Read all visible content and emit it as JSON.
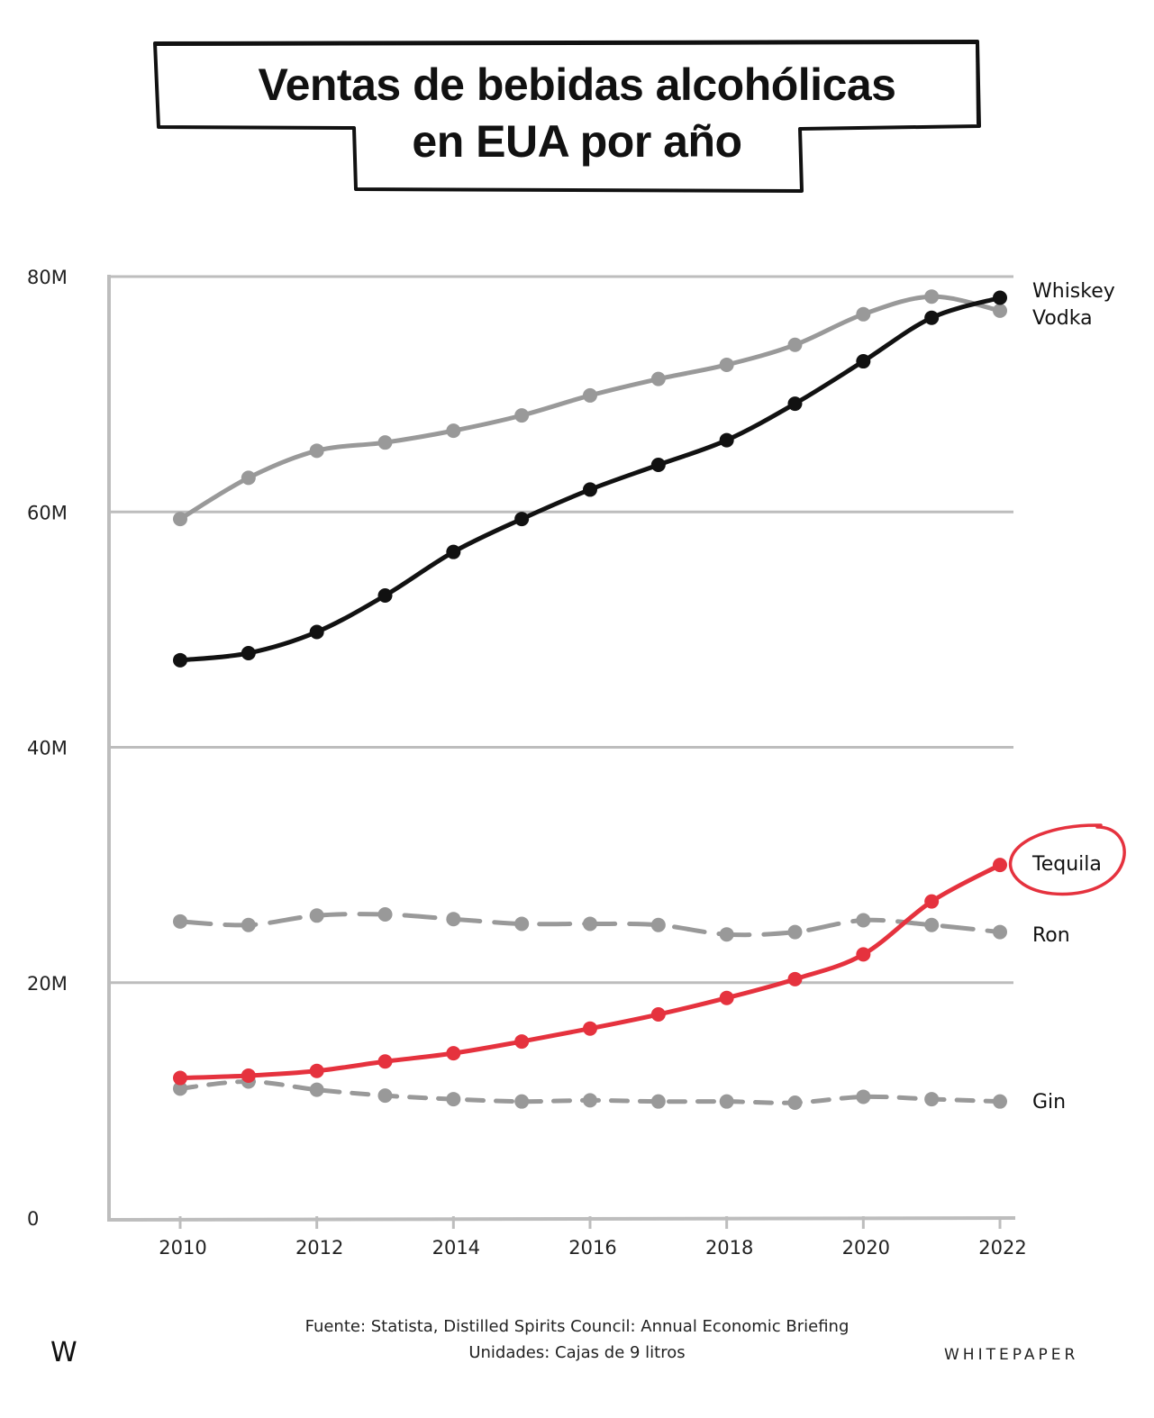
{
  "title": {
    "line1": "Ventas de bebidas alcohólicas",
    "line2": "en EUA por año"
  },
  "footer": {
    "source": "Fuente: Statista, Distilled Spirits Council: Annual Economic Briefing",
    "units": "Unidades: Cajas de 9 litros",
    "logo": "W",
    "brand": "WHITEPAPER"
  },
  "colors": {
    "whiskey": "#111111",
    "vodka": "#999999",
    "tequila": "#e5323e",
    "ron": "#999999",
    "gin": "#999999",
    "grid": "#bdbdbd"
  },
  "chart_data": {
    "type": "line",
    "title": "Ventas de bebidas alcohólicas en EUA por año",
    "xlabel": "",
    "ylabel": "",
    "x": [
      2010,
      2011,
      2012,
      2013,
      2014,
      2015,
      2016,
      2017,
      2018,
      2019,
      2020,
      2021,
      2022
    ],
    "x_ticks": [
      "2010",
      "2012",
      "2014",
      "2016",
      "2018",
      "2020",
      "2022"
    ],
    "y_ticks": [
      "0",
      "20M",
      "40M",
      "60M",
      "80M"
    ],
    "ylim": [
      0,
      80
    ],
    "grid": "horizontal",
    "legend": "labels at right end of each line",
    "series": [
      {
        "name": "Whiskey",
        "style": "solid",
        "values": [
          47.4,
          48.0,
          49.8,
          52.9,
          56.6,
          59.4,
          61.9,
          64.0,
          66.1,
          69.2,
          72.8,
          76.5,
          78.2
        ]
      },
      {
        "name": "Vodka",
        "style": "solid",
        "values": [
          59.4,
          62.9,
          65.2,
          65.9,
          66.9,
          68.2,
          69.9,
          71.3,
          72.5,
          74.2,
          76.8,
          78.3,
          77.1
        ]
      },
      {
        "name": "Tequila",
        "style": "solid",
        "highlight": true,
        "values": [
          11.9,
          12.1,
          12.5,
          13.3,
          14.0,
          15.0,
          16.1,
          17.3,
          18.7,
          20.3,
          22.4,
          26.9,
          30.0
        ]
      },
      {
        "name": "Ron",
        "style": "dashed",
        "values": [
          25.2,
          24.9,
          25.7,
          25.8,
          25.4,
          25.0,
          25.0,
          24.9,
          24.1,
          24.3,
          25.3,
          24.9,
          24.3
        ]
      },
      {
        "name": "Gin",
        "style": "dashed",
        "values": [
          11.0,
          11.6,
          10.9,
          10.4,
          10.1,
          9.9,
          10.0,
          9.9,
          9.9,
          9.8,
          10.3,
          10.1,
          9.9
        ]
      }
    ]
  }
}
